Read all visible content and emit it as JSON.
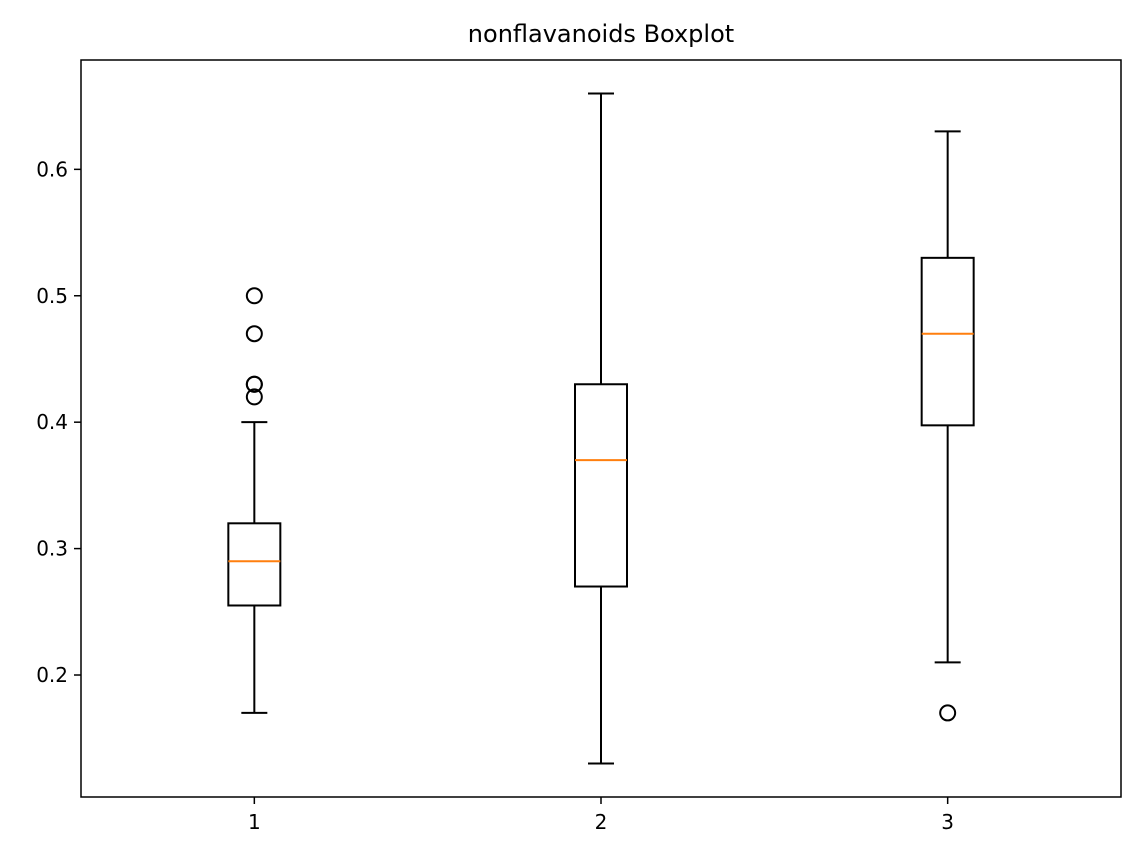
{
  "chart_data": {
    "type": "boxplot",
    "title": "nonflavanoids Boxplot",
    "xlabel": "",
    "ylabel": "",
    "categories": [
      "1",
      "2",
      "3"
    ],
    "ylim": [
      0.1035,
      0.6865
    ],
    "yticks": [
      0.2,
      0.3,
      0.4,
      0.5,
      0.6
    ],
    "ytick_labels": [
      "0.2",
      "0.3",
      "0.4",
      "0.5",
      "0.6"
    ],
    "grid": false,
    "boxes": [
      {
        "q1": 0.255,
        "median": 0.29,
        "q3": 0.32,
        "whisker_low": 0.17,
        "whisker_high": 0.4,
        "outliers": [
          0.42,
          0.43,
          0.43,
          0.47,
          0.5
        ]
      },
      {
        "q1": 0.27,
        "median": 0.37,
        "q3": 0.43,
        "whisker_low": 0.13,
        "whisker_high": 0.66,
        "outliers": []
      },
      {
        "q1": 0.3975,
        "median": 0.47,
        "q3": 0.53,
        "whisker_low": 0.21,
        "whisker_high": 0.63,
        "outliers": [
          0.17
        ]
      }
    ],
    "colors": {
      "box": "#000000",
      "median": "#ff7f0e",
      "outlier": "#000000"
    }
  }
}
